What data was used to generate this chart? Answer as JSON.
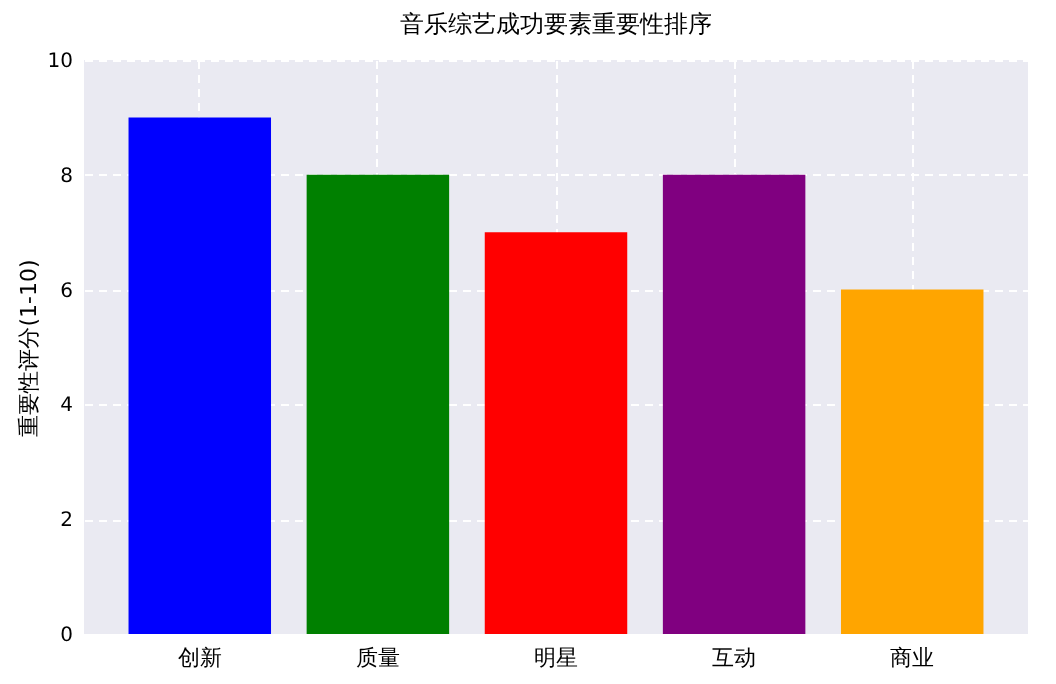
{
  "chart_data": {
    "type": "bar",
    "title": "音乐综艺成功要素重要性排序",
    "ylabel": "重要性评分(1-10)",
    "categories": [
      "创新",
      "质量",
      "明星",
      "互动",
      "商业"
    ],
    "values": [
      9,
      8,
      7,
      8,
      6
    ],
    "colors": [
      "#0000ff",
      "#008000",
      "#ff0000",
      "#800080",
      "#ffa500"
    ],
    "ylim": [
      0,
      10
    ],
    "yticks": [
      0,
      2,
      4,
      6,
      8,
      10
    ],
    "grid": true
  }
}
